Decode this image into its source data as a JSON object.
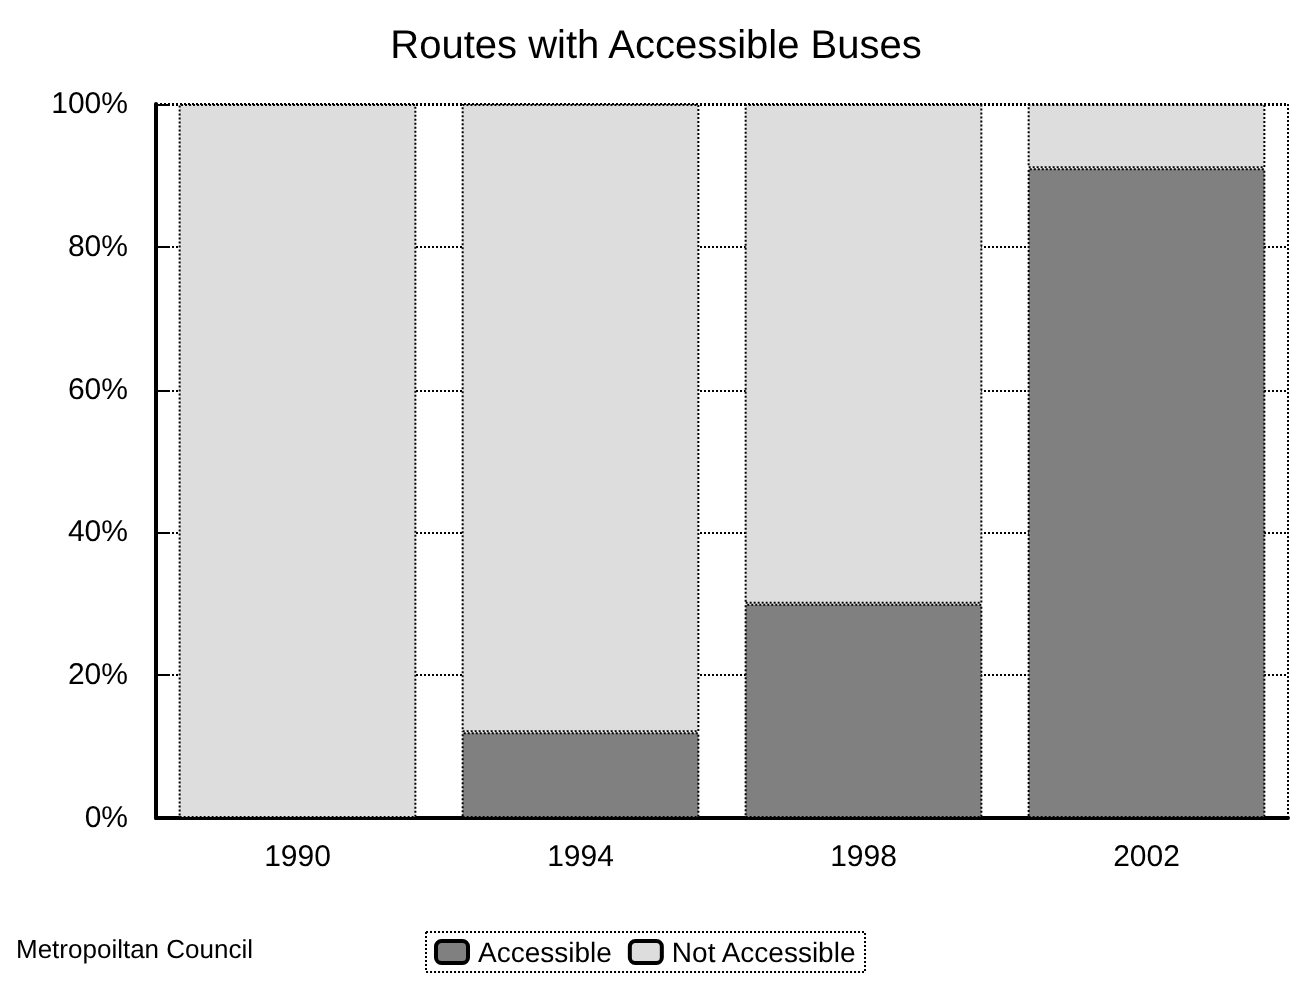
{
  "chart_data": {
    "type": "bar",
    "title": "Routes with Accessible Buses",
    "categories": [
      "1990",
      "1994",
      "1998",
      "2002"
    ],
    "series": [
      {
        "name": "Accessible",
        "color": "#808080",
        "values": [
          0,
          12,
          30,
          91
        ]
      },
      {
        "name": "Not Accessible",
        "color": "#dddddd",
        "values": [
          100,
          88,
          70,
          9
        ]
      }
    ],
    "stacked": true,
    "ylim": [
      0,
      100
    ],
    "yticks": [
      {
        "value": 0,
        "label": "0%"
      },
      {
        "value": 20,
        "label": "20%"
      },
      {
        "value": 40,
        "label": "40%"
      },
      {
        "value": 60,
        "label": "60%"
      },
      {
        "value": 80,
        "label": "80%"
      },
      {
        "value": 100,
        "label": "100%"
      }
    ],
    "grid": "y",
    "legend": "bottom",
    "annotations": [
      "Metropoiltan Council"
    ]
  }
}
